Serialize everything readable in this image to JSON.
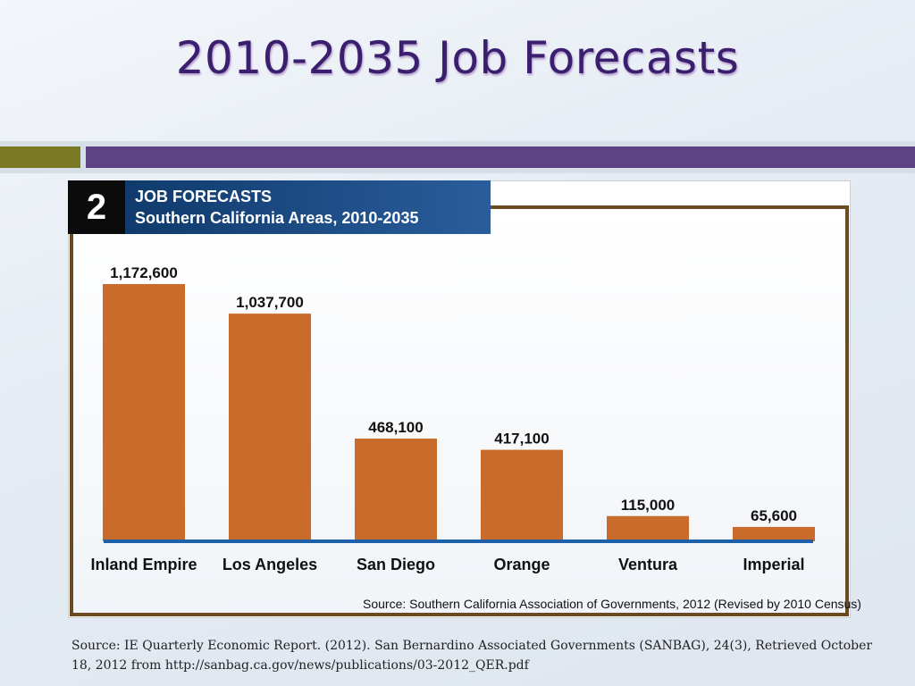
{
  "slide": {
    "title": "2010-2035 Job Forecasts",
    "footer_source": "Source: IE Quarterly Economic Report. (2012). San Bernardino Associated Governments (SANBAG), 24(3), Retrieved October 18, 2012 from http://sanbag.ca.gov/news/publications/03-2012_QER.pdf"
  },
  "chart_header": {
    "number": "2",
    "title_line1": "JOB FORECASTS",
    "title_line2": "Southern California Areas, 2010-2035"
  },
  "chart_source": "Source:  Southern California Association of Governments, 2012 (Revised by 2010 Census)",
  "colors": {
    "bar": "#c96b2b",
    "baseline": "#1d5fa8",
    "title": "#3a1f6e",
    "frame": "#6b4a22"
  },
  "chart_data": {
    "type": "bar",
    "title": "JOB FORECASTS Southern California Areas, 2010-2035",
    "categories": [
      "Inland Empire",
      "Los Angeles",
      "San Diego",
      "Orange",
      "Ventura",
      "Imperial"
    ],
    "values": [
      1172600,
      1037700,
      468100,
      417100,
      115000,
      65600
    ],
    "value_labels": [
      "1,172,600",
      "1,037,700",
      "468,100",
      "417,100",
      "115,000",
      "65,600"
    ],
    "ylim": [
      0,
      1172600
    ],
    "grid": false,
    "legend": "none"
  }
}
